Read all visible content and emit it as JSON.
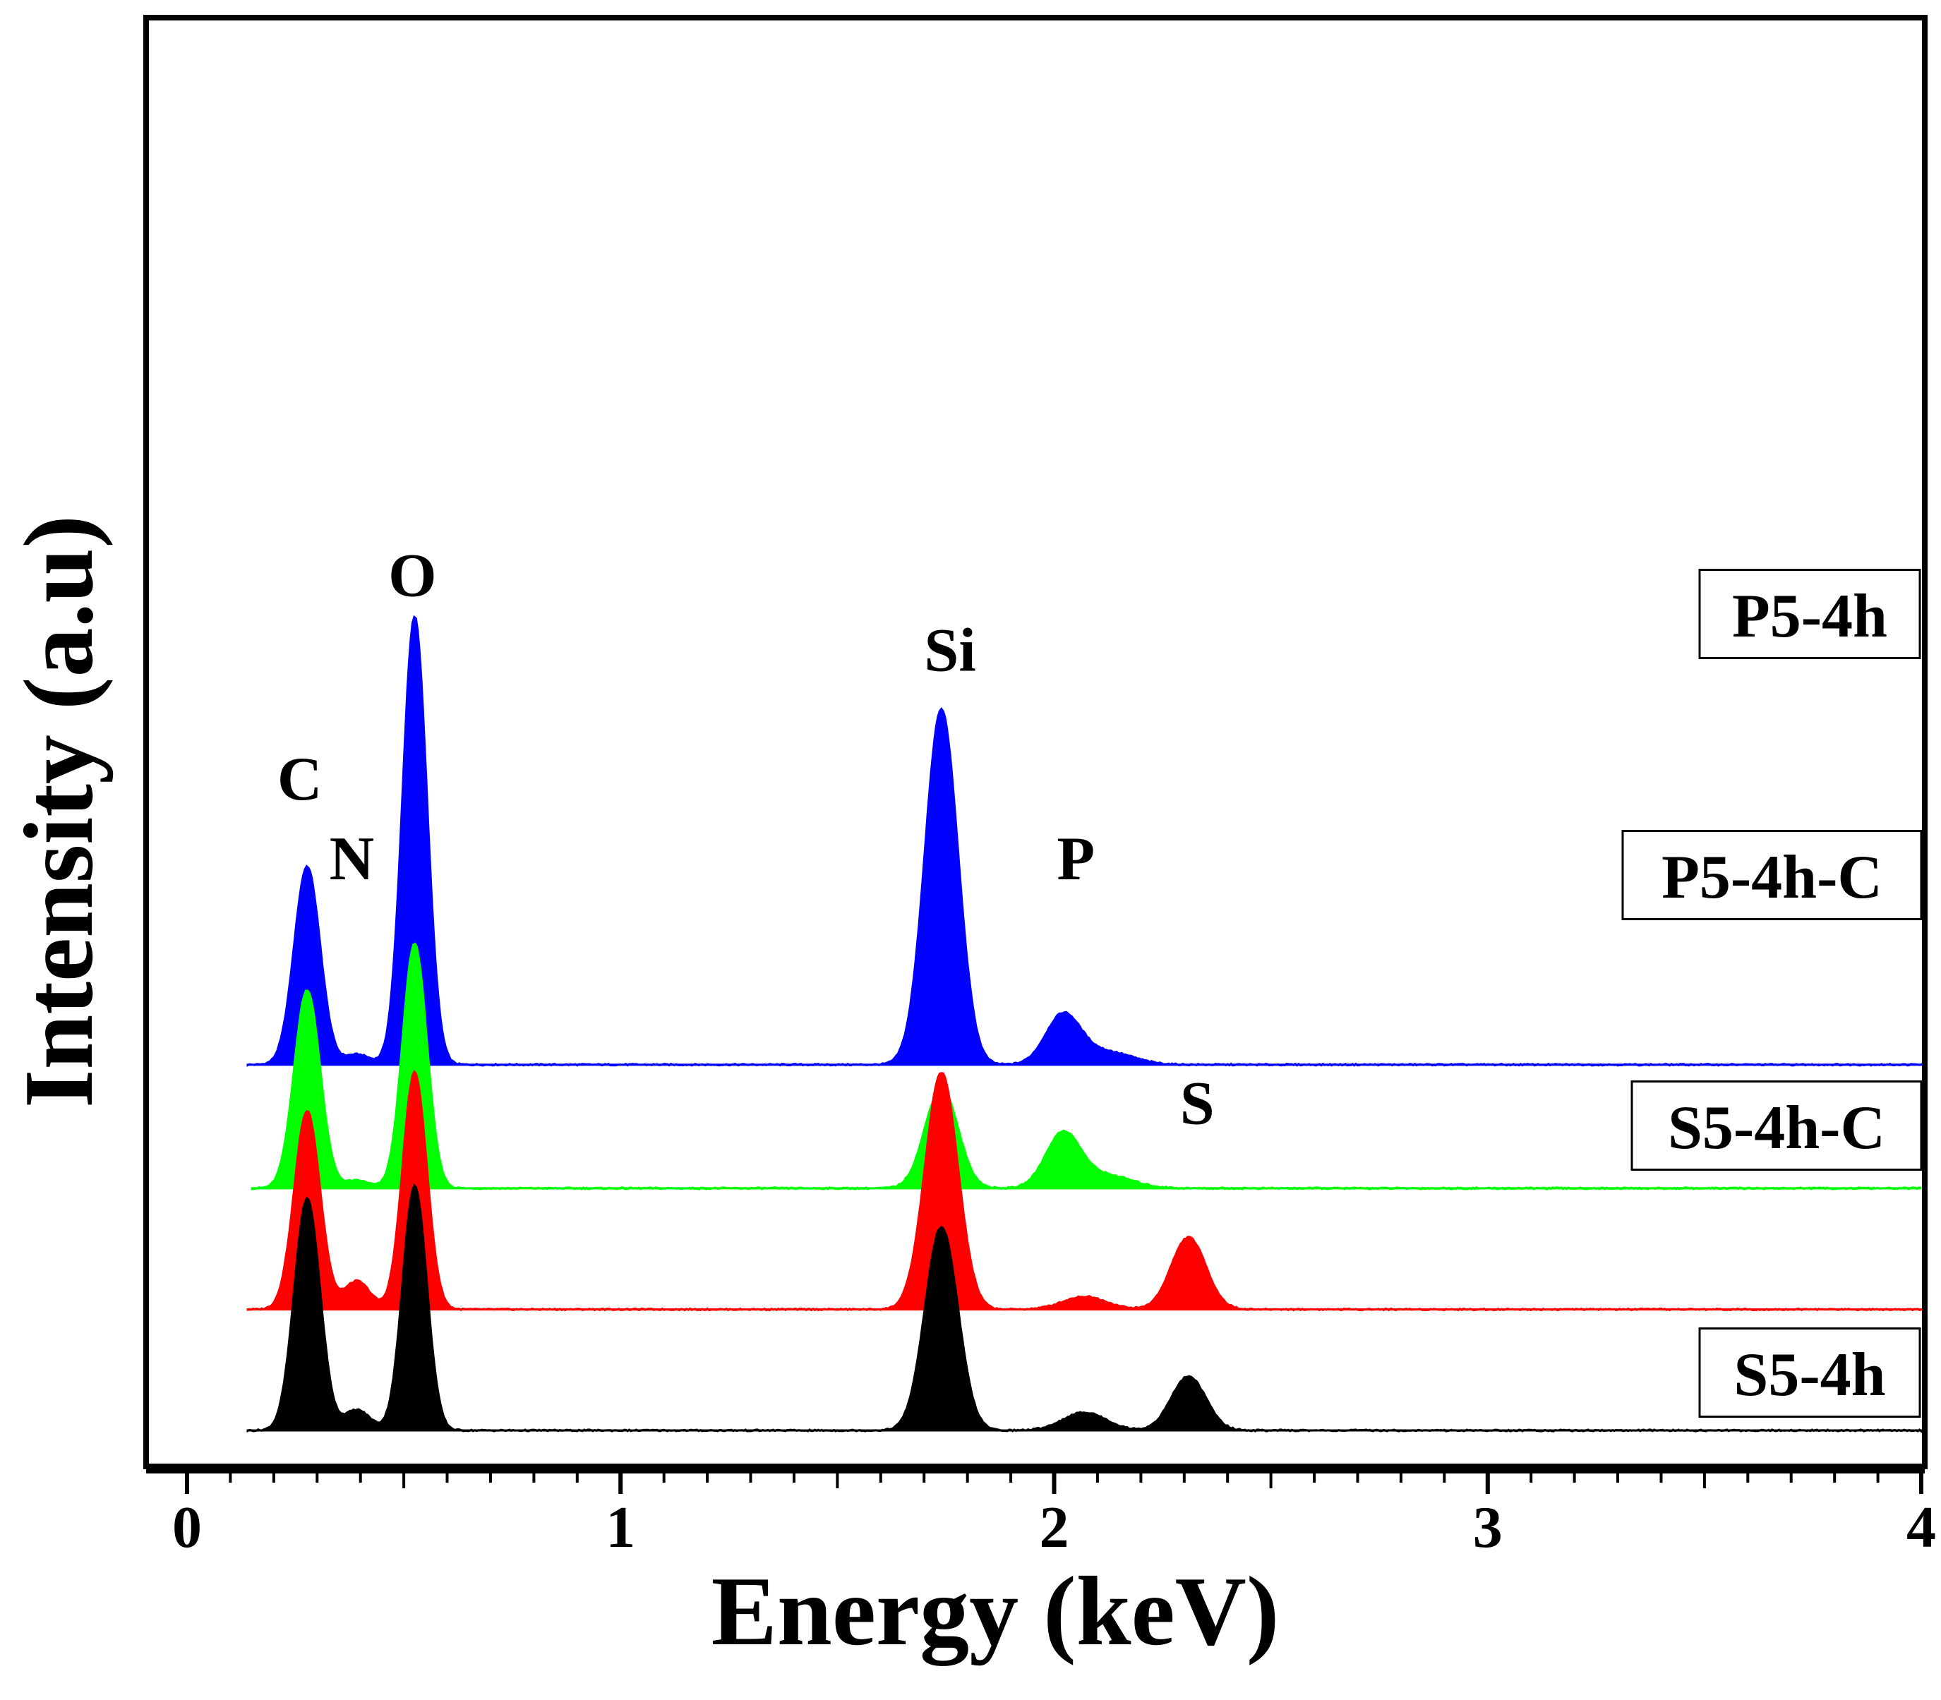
{
  "chart_data": {
    "type": "area",
    "title": "",
    "xlabel": "Energy (keV)",
    "ylabel": "Intensity (a.u)",
    "xlim": [
      0,
      4
    ],
    "x_ticks": [
      0,
      1,
      2,
      3,
      4
    ],
    "x_tick_labels": [
      "0",
      "1",
      "2",
      "3",
      "4"
    ],
    "y_ticks_shown": false,
    "grid": false,
    "legend": "inline labels at right end of each trace",
    "baseline_noise": 0.006,
    "series": [
      {
        "name": "P5-4h",
        "color": "#0000FF",
        "baseline": 1.42,
        "x_start": 0.14,
        "x_end": 4.0,
        "peaks": [
          {
            "element": "C",
            "energy": 0.277,
            "height": 0.77,
            "width": 0.03
          },
          {
            "element": "N",
            "energy": 0.392,
            "height": 0.04,
            "width": 0.03
          },
          {
            "element": "O",
            "energy": 0.525,
            "height": 1.74,
            "width": 0.028
          },
          {
            "element": "Si",
            "energy": 1.74,
            "height": 1.38,
            "width": 0.038
          },
          {
            "element": "P",
            "energy": 2.02,
            "height": 0.19,
            "width": 0.04
          },
          {
            "element": "",
            "energy": 2.12,
            "height": 0.05,
            "width": 0.06
          }
        ]
      },
      {
        "name": "P5-4h-C",
        "color": "#00FF00",
        "baseline": 0.94,
        "x_start": 0.15,
        "x_end": 4.0,
        "peaks": [
          {
            "element": "C",
            "energy": 0.277,
            "height": 0.77,
            "width": 0.03
          },
          {
            "element": "N",
            "energy": 0.392,
            "height": 0.03,
            "width": 0.03
          },
          {
            "element": "O",
            "energy": 0.525,
            "height": 0.95,
            "width": 0.028
          },
          {
            "element": "Si",
            "energy": 1.74,
            "height": 0.39,
            "width": 0.038
          },
          {
            "element": "P",
            "energy": 2.02,
            "height": 0.21,
            "width": 0.04
          },
          {
            "element": "",
            "energy": 2.12,
            "height": 0.05,
            "width": 0.06
          }
        ]
      },
      {
        "name": "S5-4h-C",
        "color": "#FF0000",
        "baseline": 0.47,
        "x_start": 0.14,
        "x_end": 4.0,
        "peaks": [
          {
            "element": "C",
            "energy": 0.277,
            "height": 0.77,
            "width": 0.03
          },
          {
            "element": "N",
            "energy": 0.392,
            "height": 0.11,
            "width": 0.03
          },
          {
            "element": "O",
            "energy": 0.525,
            "height": 0.92,
            "width": 0.028
          },
          {
            "element": "Si",
            "energy": 1.74,
            "height": 0.92,
            "width": 0.038
          },
          {
            "element": "",
            "energy": 2.07,
            "height": 0.05,
            "width": 0.05
          },
          {
            "element": "S",
            "energy": 2.31,
            "height": 0.28,
            "width": 0.04
          }
        ]
      },
      {
        "name": "S5-4h",
        "color": "#000000",
        "baseline": 0.0,
        "x_start": 0.14,
        "x_end": 4.0,
        "peaks": [
          {
            "element": "C",
            "energy": 0.277,
            "height": 0.9,
            "width": 0.03
          },
          {
            "element": "N",
            "energy": 0.392,
            "height": 0.08,
            "width": 0.03
          },
          {
            "element": "O",
            "energy": 0.525,
            "height": 0.95,
            "width": 0.028
          },
          {
            "element": "Si",
            "energy": 1.74,
            "height": 0.79,
            "width": 0.038
          },
          {
            "element": "",
            "energy": 2.07,
            "height": 0.07,
            "width": 0.05
          },
          {
            "element": "S",
            "energy": 2.31,
            "height": 0.21,
            "width": 0.04
          }
        ]
      }
    ],
    "y_range": [
      -0.1,
      3.43
    ],
    "annotations": [
      {
        "text": "C",
        "x": 0.26,
        "y": 2.45
      },
      {
        "text": "N",
        "x": 0.38,
        "y": 2.14
      },
      {
        "text": "O",
        "x": 0.52,
        "y": 3.24
      },
      {
        "text": "Si",
        "x": 1.76,
        "y": 2.95
      },
      {
        "text": "P",
        "x": 2.05,
        "y": 2.14
      },
      {
        "text": "S",
        "x": 2.33,
        "y": 1.19
      }
    ]
  }
}
